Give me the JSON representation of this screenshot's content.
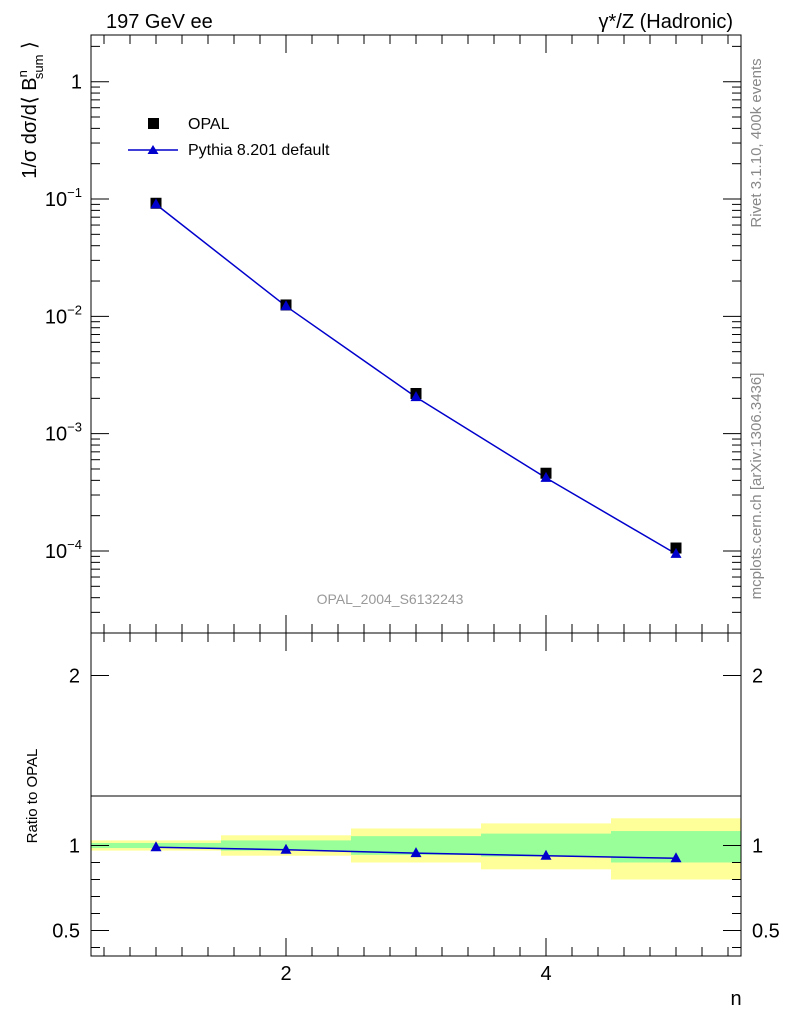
{
  "header": {
    "left_title": "197 GeV ee",
    "right_title": "γ*/Z (Hadronic)"
  },
  "side_labels": {
    "rivet": "Rivet 3.1.10,  400k events",
    "mcplots": "mcplots.cern.ch [arXiv:1306.3436]"
  },
  "watermark": "OPAL_2004_S6132243",
  "legend": {
    "data_label": "OPAL",
    "mc_label": "Pythia 8.201 default"
  },
  "colors": {
    "data": "#000000",
    "mc": "#0000cc",
    "band_inner": "#99ff99",
    "band_outer": "#ffff99",
    "watermark": "#999999",
    "side_text": "#888888"
  },
  "chart_data": [
    {
      "type": "scatter",
      "panel": "main",
      "ylabel": "1/σ dσ/d⟨ B^n_sum ⟩",
      "yscale": "log",
      "ylim": [
        2e-05,
        2.5
      ],
      "xlim": [
        0.5,
        5.5
      ],
      "ytick_labels": [
        "1",
        "10^-1",
        "10^-2",
        "10^-3",
        "10^-4"
      ],
      "x": [
        1,
        2,
        3,
        4,
        5
      ],
      "series": [
        {
          "name": "OPAL",
          "values": [
            0.092,
            0.0125,
            0.0022,
            0.00046,
            0.000106
          ]
        },
        {
          "name": "Pythia 8.201 default",
          "values": [
            0.09,
            0.0122,
            0.00205,
            0.00042,
            9.45e-05
          ]
        }
      ]
    },
    {
      "type": "line",
      "panel": "ratio",
      "ylabel": "Ratio to OPAL",
      "xlabel": "n",
      "ylim": [
        0.35,
        2.25
      ],
      "xlim": [
        0.5,
        5.5
      ],
      "ytick_labels": [
        "0.5",
        "1",
        "2"
      ],
      "xtick_labels": [
        "2",
        "4"
      ],
      "x": [
        1,
        2,
        3,
        4,
        5
      ],
      "series": [
        {
          "name": "Pythia 8.201 default",
          "values": [
            0.99,
            0.975,
            0.955,
            0.94,
            0.925
          ]
        }
      ],
      "bands": {
        "bin_edges": [
          0.5,
          1.5,
          2.5,
          3.5,
          4.5,
          5.5
        ],
        "inner_low": [
          0.985,
          0.97,
          0.945,
          0.935,
          0.9
        ],
        "inner_high": [
          1.015,
          1.03,
          1.055,
          1.07,
          1.085
        ],
        "outer_low": [
          0.97,
          0.94,
          0.9,
          0.86,
          0.8
        ],
        "outer_high": [
          1.03,
          1.06,
          1.1,
          1.13,
          1.16
        ]
      }
    }
  ]
}
